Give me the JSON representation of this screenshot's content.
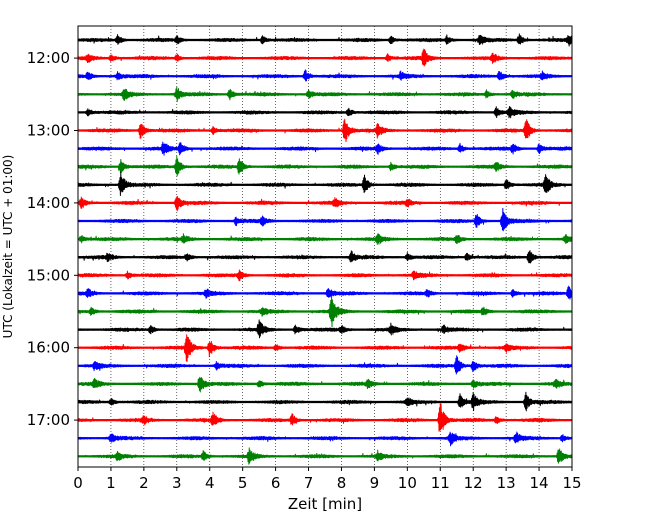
{
  "chart_data": {
    "type": "line",
    "title": "",
    "xlabel": "Zeit  [min]",
    "ylabel": "UTC (Lokalzeit = UTC + 01:00)",
    "xlim": [
      0,
      15
    ],
    "x_ticks": [
      0,
      1,
      2,
      3,
      4,
      5,
      6,
      7,
      8,
      9,
      10,
      11,
      12,
      13,
      14,
      15
    ],
    "y_tick_labels": [
      "12:00",
      "13:00",
      "14:00",
      "15:00",
      "16:00",
      "17:00"
    ],
    "grid": "vertical dotted lines at each minute",
    "trace_colors": [
      "#000000",
      "#ff0000",
      "#0000ff",
      "#008000"
    ],
    "series": [
      {
        "start": "11:45",
        "spikes": [
          [
            1.2,
            0.25
          ],
          [
            3.0,
            0.2
          ],
          [
            5.6,
            0.2
          ],
          [
            9.5,
            0.2
          ],
          [
            11.2,
            0.2
          ],
          [
            12.2,
            0.3
          ],
          [
            13.4,
            0.3
          ],
          [
            14.9,
            0.25
          ]
        ]
      },
      {
        "start": "12:00",
        "spikes": [
          [
            0.3,
            0.2
          ],
          [
            1.0,
            0.2
          ],
          [
            3.0,
            0.2
          ],
          [
            9.4,
            0.2
          ],
          [
            10.5,
            0.45
          ],
          [
            12.6,
            0.25
          ]
        ]
      },
      {
        "start": "12:15",
        "spikes": [
          [
            0.3,
            0.2
          ],
          [
            1.2,
            0.2
          ],
          [
            6.9,
            0.3
          ],
          [
            9.8,
            0.2
          ],
          [
            12.8,
            0.3
          ],
          [
            14.1,
            0.2
          ]
        ]
      },
      {
        "start": "12:30",
        "spikes": [
          [
            1.4,
            0.35
          ],
          [
            3.0,
            0.35
          ],
          [
            4.6,
            0.3
          ],
          [
            7.0,
            0.2
          ],
          [
            12.4,
            0.2
          ],
          [
            13.2,
            0.2
          ]
        ]
      },
      {
        "start": "12:45",
        "spikes": [
          [
            0.3,
            0.2
          ],
          [
            8.2,
            0.25
          ],
          [
            12.7,
            0.25
          ],
          [
            13.1,
            0.3
          ]
        ]
      },
      {
        "start": "13:00",
        "spikes": [
          [
            1.9,
            0.45
          ],
          [
            4.1,
            0.2
          ],
          [
            8.1,
            0.75
          ],
          [
            9.1,
            0.35
          ],
          [
            13.6,
            0.65
          ]
        ]
      },
      {
        "start": "13:15",
        "spikes": [
          [
            2.6,
            0.35
          ],
          [
            3.1,
            0.3
          ],
          [
            9.1,
            0.25
          ],
          [
            11.6,
            0.25
          ],
          [
            13.2,
            0.25
          ],
          [
            14.0,
            0.25
          ]
        ]
      },
      {
        "start": "13:30",
        "spikes": [
          [
            1.3,
            0.35
          ],
          [
            3.0,
            0.5
          ],
          [
            4.9,
            0.45
          ],
          [
            9.5,
            0.2
          ],
          [
            12.7,
            0.2
          ]
        ]
      },
      {
        "start": "13:45",
        "spikes": [
          [
            1.3,
            0.65
          ],
          [
            8.7,
            0.45
          ],
          [
            13.0,
            0.35
          ],
          [
            14.2,
            0.55
          ]
        ]
      },
      {
        "start": "14:00",
        "spikes": [
          [
            0.1,
            0.3
          ],
          [
            3.0,
            0.45
          ],
          [
            7.8,
            0.2
          ],
          [
            10.0,
            0.2
          ]
        ]
      },
      {
        "start": "14:15",
        "spikes": [
          [
            4.8,
            0.2
          ],
          [
            5.6,
            0.2
          ],
          [
            12.1,
            0.35
          ],
          [
            12.9,
            0.6
          ]
        ]
      },
      {
        "start": "14:30",
        "spikes": [
          [
            0.1,
            0.2
          ],
          [
            3.2,
            0.2
          ],
          [
            9.1,
            0.3
          ],
          [
            11.5,
            0.25
          ],
          [
            14.8,
            0.2
          ]
        ]
      },
      {
        "start": "14:45",
        "spikes": [
          [
            0.9,
            0.2
          ],
          [
            3.3,
            0.2
          ],
          [
            8.3,
            0.3
          ],
          [
            10.0,
            0.2
          ],
          [
            11.8,
            0.2
          ],
          [
            13.7,
            0.45
          ]
        ]
      },
      {
        "start": "15:00",
        "spikes": [
          [
            1.5,
            0.2
          ],
          [
            4.9,
            0.25
          ],
          [
            10.2,
            0.2
          ]
        ]
      },
      {
        "start": "15:15",
        "spikes": [
          [
            0.3,
            0.2
          ],
          [
            3.9,
            0.2
          ],
          [
            7.6,
            0.3
          ],
          [
            10.6,
            0.2
          ],
          [
            13.2,
            0.2
          ],
          [
            14.9,
            0.4
          ]
        ]
      },
      {
        "start": "15:30",
        "spikes": [
          [
            0.4,
            0.2
          ],
          [
            5.6,
            0.2
          ],
          [
            7.7,
            0.95
          ],
          [
            12.3,
            0.2
          ]
        ]
      },
      {
        "start": "15:45",
        "spikes": [
          [
            2.2,
            0.2
          ],
          [
            5.5,
            0.45
          ],
          [
            6.6,
            0.25
          ],
          [
            8.0,
            0.2
          ],
          [
            9.5,
            0.25
          ],
          [
            11.1,
            0.2
          ]
        ]
      },
      {
        "start": "16:00",
        "spikes": [
          [
            3.3,
            0.8
          ],
          [
            4.0,
            0.5
          ],
          [
            6.0,
            0.2
          ],
          [
            11.6,
            0.2
          ],
          [
            13.0,
            0.2
          ]
        ]
      },
      {
        "start": "16:15",
        "spikes": [
          [
            0.5,
            0.2
          ],
          [
            4.2,
            0.2
          ],
          [
            11.5,
            0.5
          ],
          [
            12.0,
            0.3
          ]
        ]
      },
      {
        "start": "16:30",
        "spikes": [
          [
            0.5,
            0.2
          ],
          [
            3.7,
            0.55
          ],
          [
            5.5,
            0.2
          ],
          [
            8.8,
            0.2
          ],
          [
            12.0,
            0.2
          ],
          [
            14.5,
            0.2
          ]
        ]
      },
      {
        "start": "16:45",
        "spikes": [
          [
            1.0,
            0.2
          ],
          [
            10.0,
            0.2
          ],
          [
            11.6,
            0.4
          ],
          [
            12.0,
            0.4
          ],
          [
            13.6,
            0.45
          ]
        ]
      },
      {
        "start": "17:00",
        "spikes": [
          [
            2.0,
            0.2
          ],
          [
            4.1,
            0.35
          ],
          [
            6.5,
            0.3
          ],
          [
            11.0,
            1.0
          ],
          [
            12.7,
            0.2
          ]
        ]
      },
      {
        "start": "17:15",
        "spikes": [
          [
            1.0,
            0.25
          ],
          [
            11.3,
            0.4
          ],
          [
            13.3,
            0.3
          ],
          [
            14.7,
            0.2
          ]
        ]
      },
      {
        "start": "17:30",
        "spikes": [
          [
            1.2,
            0.2
          ],
          [
            3.8,
            0.25
          ],
          [
            5.2,
            0.4
          ],
          [
            9.1,
            0.2
          ],
          [
            14.6,
            0.45
          ]
        ]
      }
    ]
  }
}
